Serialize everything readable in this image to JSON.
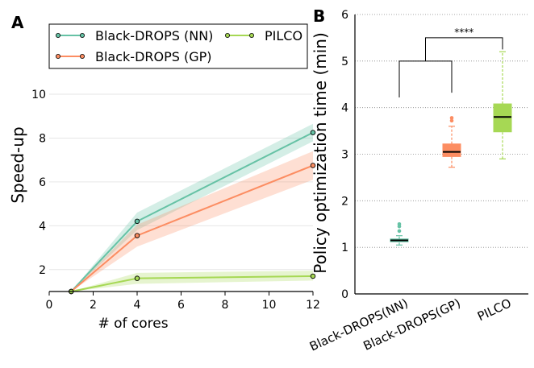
{
  "panel_labels": {
    "a": "A",
    "b": "B"
  },
  "colors": {
    "nn": "#66c2a5",
    "gp": "#fc8d62",
    "pilco": "#a6d854"
  },
  "chart_data": [
    {
      "type": "line",
      "xlabel": "# of cores",
      "ylabel": "Speed-up",
      "xlim": [
        0,
        12
      ],
      "ylim": [
        1,
        10
      ],
      "xticks": [
        "0",
        "2",
        "4",
        "6",
        "8",
        "10",
        "12"
      ],
      "yticks": [
        "2",
        "4",
        "6",
        "8",
        "10"
      ],
      "grid": "horizontal",
      "legend": "top, 2 columns",
      "x": [
        1,
        4,
        12
      ],
      "series": [
        {
          "name": "Black-DROPS (NN)",
          "values": [
            1,
            4.2,
            8.25
          ],
          "band_low": [
            1,
            3.8,
            7.85
          ],
          "band_high": [
            1,
            4.6,
            8.65
          ]
        },
        {
          "name": "Black-DROPS (GP)",
          "values": [
            1,
            3.55,
            6.75
          ],
          "band_low": [
            1,
            3.05,
            6.1
          ],
          "band_high": [
            1,
            4.05,
            7.4
          ]
        },
        {
          "name": "PILCO",
          "values": [
            1,
            1.6,
            1.7
          ],
          "band_low": [
            1,
            1.35,
            1.5
          ],
          "band_high": [
            1,
            1.85,
            1.95
          ]
        }
      ]
    },
    {
      "type": "box",
      "ylabel": "Policy optimization time (min)",
      "ylim": [
        0,
        6
      ],
      "yticks": [
        "0",
        "1",
        "2",
        "3",
        "4",
        "5",
        "6"
      ],
      "grid": "horizontal dotted",
      "categories": [
        "Black-DROPS(NN)",
        "Black-DROPS(GP)",
        "PILCO"
      ],
      "boxes": [
        {
          "q1": 1.12,
          "median": 1.15,
          "q3": 1.18,
          "whisker_low": 1.05,
          "whisker_high": 1.25,
          "outliers": [
            1.35,
            1.45,
            1.5
          ]
        },
        {
          "q1": 2.95,
          "median": 3.05,
          "q3": 3.22,
          "whisker_low": 2.72,
          "whisker_high": 3.6,
          "outliers": [
            3.72,
            3.78
          ]
        },
        {
          "q1": 3.48,
          "median": 3.8,
          "q3": 4.08,
          "whisker_low": 2.9,
          "whisker_high": 5.2,
          "outliers": []
        }
      ],
      "significance": "****"
    }
  ]
}
